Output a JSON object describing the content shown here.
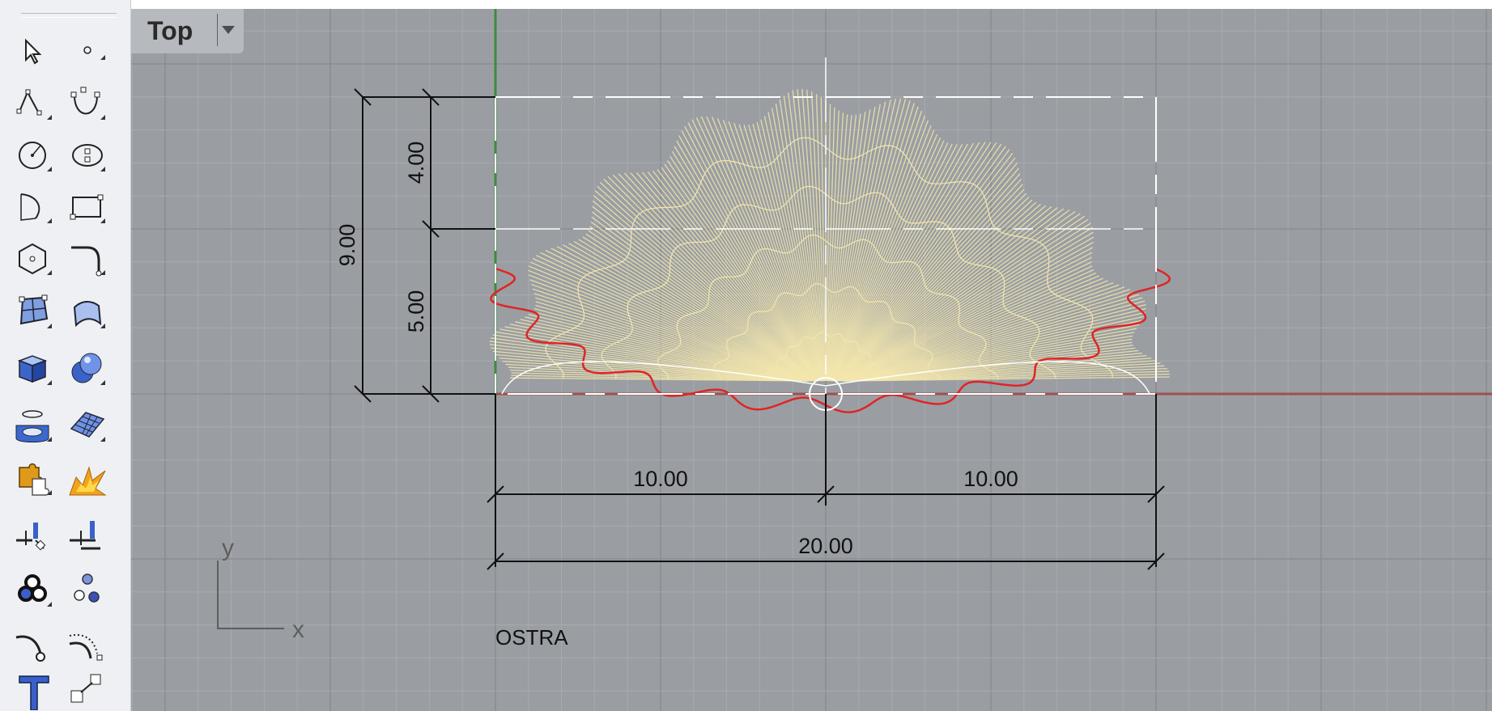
{
  "viewport": {
    "name": "Top",
    "menu_icon": "chevron-down-icon"
  },
  "dimensions": {
    "height_total": "9.00",
    "height_upper": "4.00",
    "height_lower": "5.00",
    "width_left": "10.00",
    "width_right": "10.00",
    "width_total": "20.00"
  },
  "axes": {
    "y_label": "y",
    "x_label": "x"
  },
  "annotation": "OSTRA",
  "colors": {
    "viewport_bg": "#9a9ea3",
    "grid_minor": "#a7aaaf",
    "grid_major": "#8a8d92",
    "x_axis": "#a0504e",
    "y_axis": "#3c8b3c",
    "shell_wire": "#f3e6ad",
    "shell_outline": "#e02424",
    "dimension": "#111111"
  },
  "toolbar": [
    {
      "name": "select-tool",
      "icon": "arrow-cursor-icon"
    },
    {
      "name": "point-tool",
      "icon": "point-icon"
    },
    {
      "name": "polyline-tool",
      "icon": "polyline-icon"
    },
    {
      "name": "curve-tool",
      "icon": "control-point-curve-icon"
    },
    {
      "name": "circle-tool",
      "icon": "circle-icon"
    },
    {
      "name": "ellipse-tool",
      "icon": "ellipse-icon"
    },
    {
      "name": "arc-tool",
      "icon": "arc-icon"
    },
    {
      "name": "rectangle-tool",
      "icon": "rectangle-icon"
    },
    {
      "name": "polygon-tool",
      "icon": "polygon-icon"
    },
    {
      "name": "fillet-curve-tool",
      "icon": "fillet-curve-icon"
    },
    {
      "name": "surface-tool",
      "icon": "surface-icon"
    },
    {
      "name": "extrude-surface-tool",
      "icon": "extrude-surface-icon"
    },
    {
      "name": "box-tool",
      "icon": "box-icon"
    },
    {
      "name": "sphere-tool",
      "icon": "sphere-icon"
    },
    {
      "name": "cylinder-tool",
      "icon": "cylinder-icon"
    },
    {
      "name": "mesh-plane-tool",
      "icon": "mesh-plane-icon"
    },
    {
      "name": "boolean-union-tool",
      "icon": "puzzle-icon"
    },
    {
      "name": "explode-tool",
      "icon": "explode-icon"
    },
    {
      "name": "split-tool",
      "icon": "split-icon"
    },
    {
      "name": "trim-tool",
      "icon": "trim-icon"
    },
    {
      "name": "group-tool",
      "icon": "group-circles-icon"
    },
    {
      "name": "ungroup-tool",
      "icon": "ungroup-circles-icon"
    },
    {
      "name": "curve-from-object-tool",
      "icon": "curve-from-object-icon"
    },
    {
      "name": "offset-curve-tool",
      "icon": "offset-curve-icon"
    },
    {
      "name": "text-tool",
      "icon": "text-T-icon"
    },
    {
      "name": "transform-tool",
      "icon": "transform-icon"
    }
  ]
}
